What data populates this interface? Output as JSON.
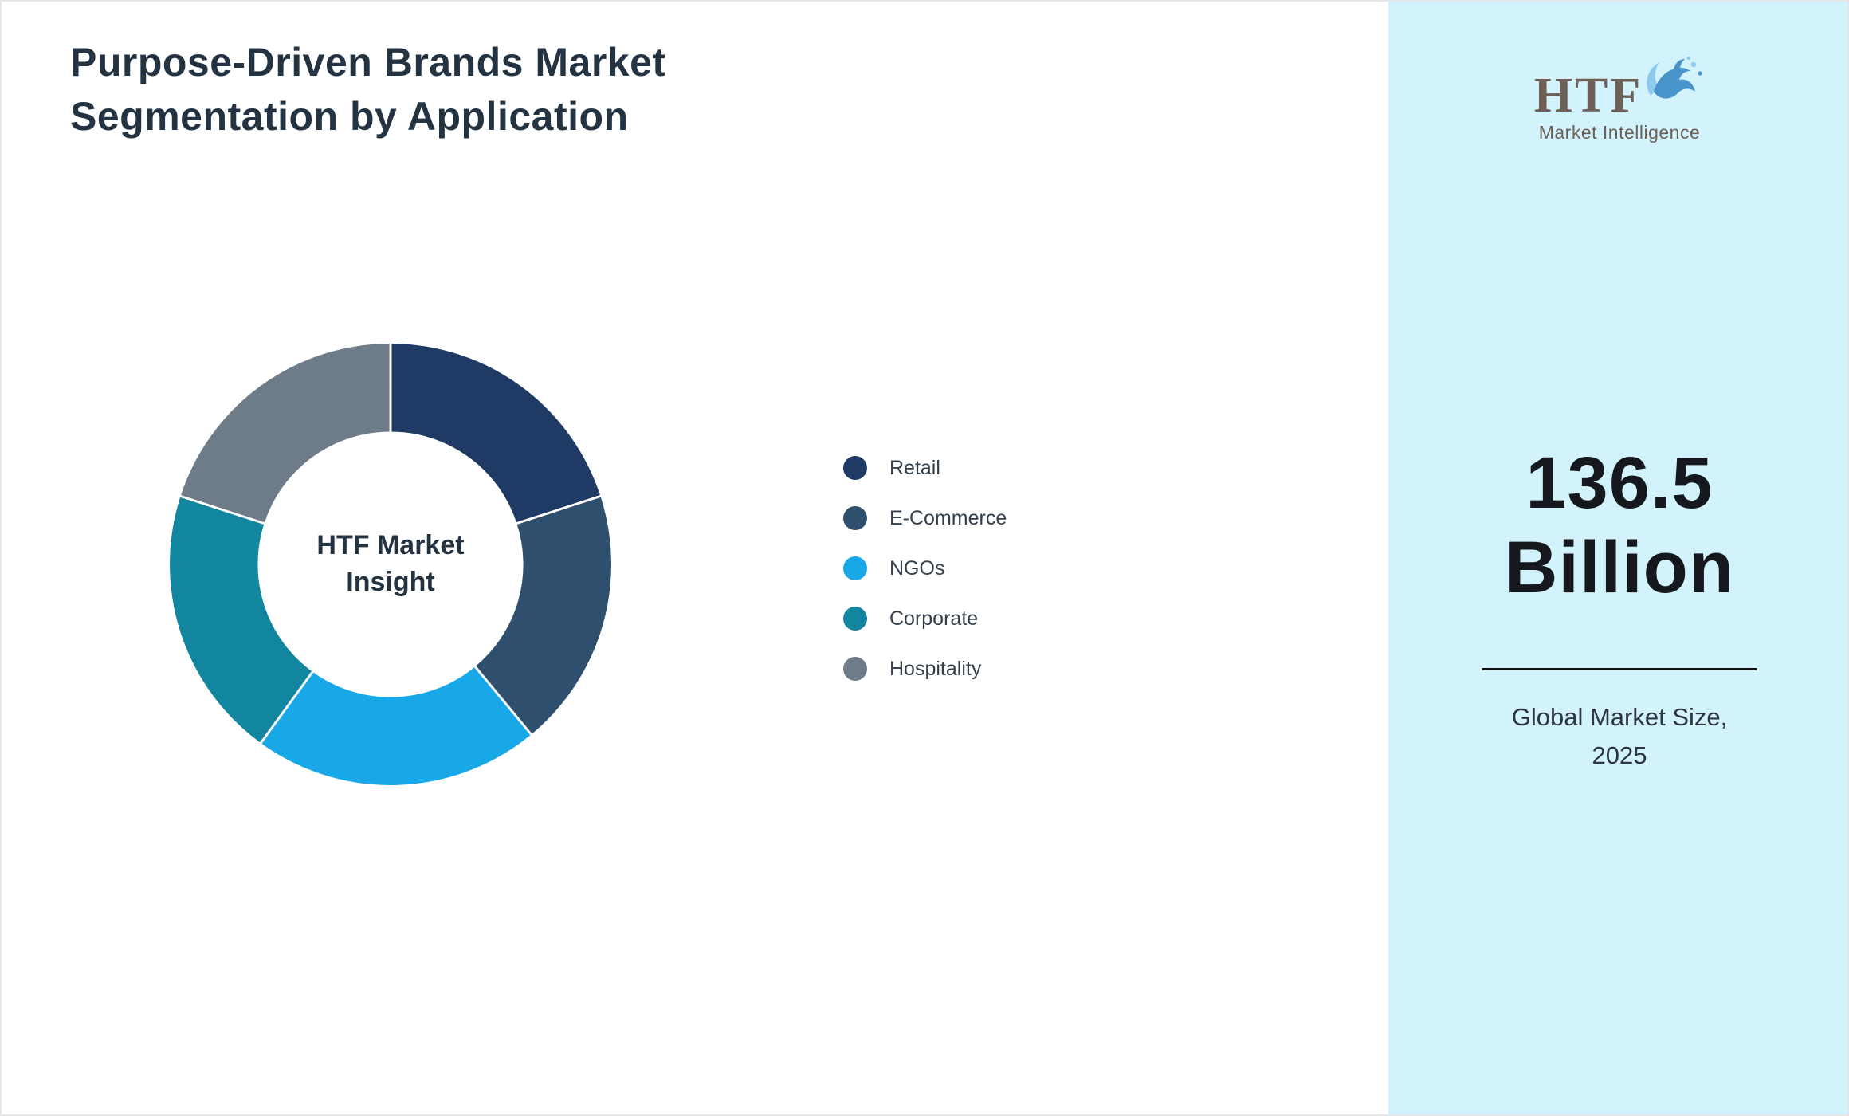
{
  "theme": {
    "sidebar_bg": "#d2f3fb",
    "title_color": "#233342",
    "value_color": "#15191e",
    "page_bg": "#ffffff"
  },
  "header": {
    "title_line1": "Purpose-Driven Brands Market",
    "title_line2": "Segmentation by Application"
  },
  "chart_data": {
    "type": "pie",
    "donut": true,
    "title": "Purpose-Driven Brands Market Segmentation by Application",
    "center_label": "HTF Market Insight",
    "legend_position": "right",
    "segments": [
      {
        "label": "Retail",
        "value": 20,
        "color": "#1f3a64"
      },
      {
        "label": "E-Commerce",
        "value": 19,
        "color": "#2e506e"
      },
      {
        "label": "NGOs",
        "value": 21,
        "color": "#18a8e8"
      },
      {
        "label": "Corporate",
        "value": 20,
        "color": "#12869f"
      },
      {
        "label": "Hospitality",
        "value": 20,
        "color": "#6e7b89"
      }
    ]
  },
  "sidebar": {
    "logo": {
      "text": "HTF",
      "subtext": "Market Intelligence",
      "icon": "dolphin-splash-icon"
    },
    "market_size_lines": [
      "136.5",
      "Billion"
    ],
    "market_size_label": "Global Market Size, 2025"
  }
}
